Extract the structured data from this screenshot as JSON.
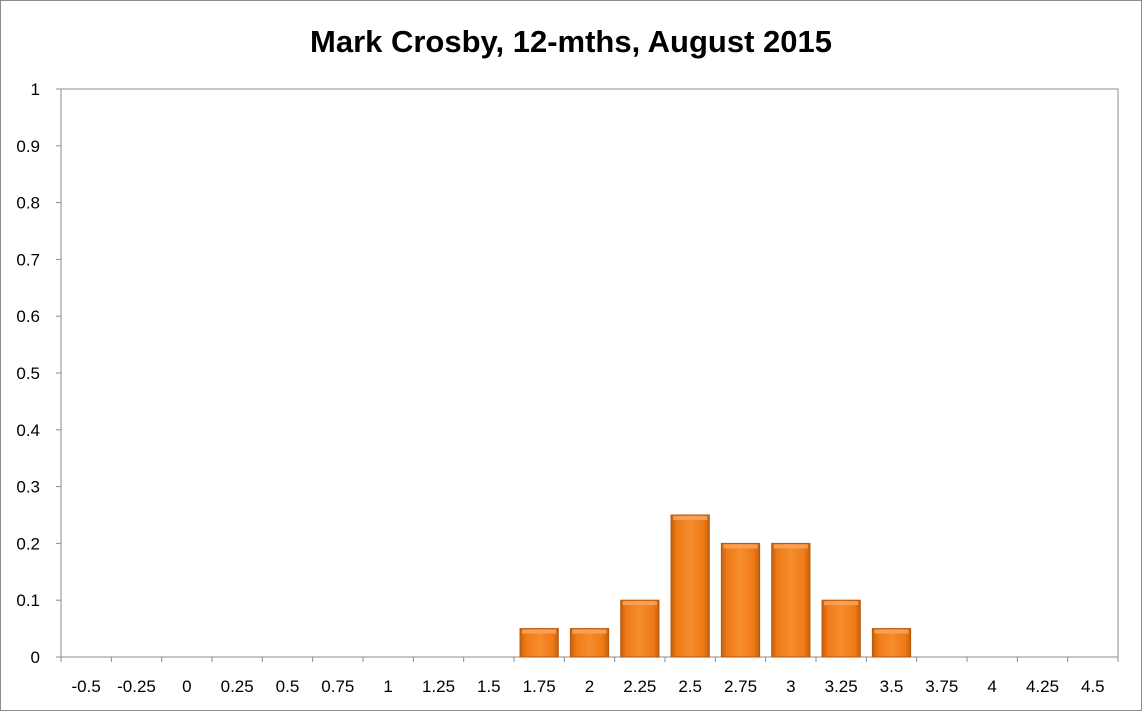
{
  "chart_data": {
    "type": "bar",
    "title": "Mark Crosby, 12-mths, August 2015",
    "xlabel": "",
    "ylabel": "",
    "categories": [
      "-0.5",
      "-0.25",
      "0",
      "0.25",
      "0.5",
      "0.75",
      "1",
      "1.25",
      "1.5",
      "1.75",
      "2",
      "2.25",
      "2.5",
      "2.75",
      "3",
      "3.25",
      "3.5",
      "3.75",
      "4",
      "4.25",
      "4.5"
    ],
    "values": [
      0,
      0,
      0,
      0,
      0,
      0,
      0,
      0,
      0,
      0.05,
      0.05,
      0.1,
      0.25,
      0.2,
      0.2,
      0.1,
      0.05,
      0,
      0,
      0,
      0
    ],
    "ylim": [
      0,
      1
    ],
    "yticks": [
      "0",
      "0.1",
      "0.2",
      "0.3",
      "0.4",
      "0.5",
      "0.6",
      "0.7",
      "0.8",
      "0.9",
      "1"
    ],
    "grid": false,
    "legend": "none",
    "colors": {
      "bar": "#f07a17",
      "bar_light": "#f9a45a",
      "bar_dark": "#b8560a",
      "axis": "#8c8c8c"
    }
  }
}
